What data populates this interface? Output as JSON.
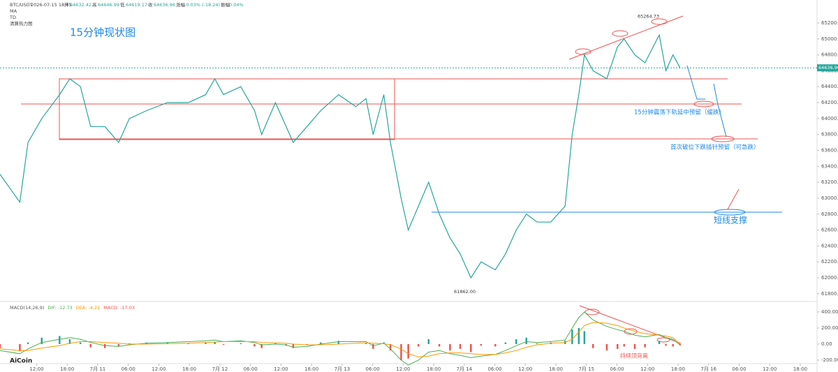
{
  "header": {
    "symbol": "BTC/USDT",
    "datetime": "2026-07-15 18:45",
    "open_label": "开",
    "open": "64632.42",
    "high_label": "高",
    "high": "64646.99",
    "low_label": "低",
    "low": "64619.17",
    "close_label": "收",
    "close": "64636.96",
    "change_label": "涨幅",
    "change": "-0.03% (-18.24)",
    "amp_label": "振幅",
    "amp": "0.04%",
    "indicators": [
      "MA",
      "TD",
      "清算热力图"
    ],
    "logo": "AiCoin"
  },
  "chart_data": [
    {
      "type": "line",
      "title": "15分钟现状图",
      "x": [
        -19.2,
        -15.3,
        -13.7,
        -11,
        -7.5,
        -5.5,
        -3.4,
        -1.4,
        1.4,
        4.1,
        6.2,
        9.6,
        13.7,
        17.8,
        21.2,
        23,
        24.7,
        28.1,
        30.8,
        32.2,
        34.9,
        37,
        38.4,
        41.1,
        43.8,
        47.3,
        50.7,
        52.7,
        54.1,
        56.2,
        57.5,
        59.6,
        61,
        63,
        65,
        67.1,
        69.2,
        71.2,
        73.3,
        75.3,
        78.1,
        80.1,
        82.2,
        84.2,
        86.3,
        89,
        91.8,
        93.2,
        94.5,
        95.6,
        97.3,
        100,
        102.1,
        103.4,
        105.5,
        107.5,
        110.3,
        111.6,
        113,
        114.4
      ],
      "series": [
        {
          "color": "#26a69a",
          "values": [
            63300,
            62950,
            63700,
            64000,
            64300,
            64500,
            64400,
            63900,
            63900,
            63700,
            64000,
            64100,
            64200,
            64200,
            64300,
            64500,
            64300,
            64400,
            64100,
            63800,
            64200,
            63900,
            63700,
            63900,
            64100,
            64300,
            64150,
            64250,
            63800,
            64300,
            63700,
            63000,
            62600,
            62900,
            63200,
            62800,
            62500,
            62300,
            62000,
            62200,
            62100,
            62300,
            62600,
            62800,
            62700,
            62700,
            62900,
            63800,
            64300,
            64800,
            64600,
            64500,
            64900,
            65000,
            64800,
            64700,
            65050,
            64600,
            64800,
            64636.96
          ]
        }
      ],
      "xlim": [
        -19.2,
        141.3
      ],
      "xticks": [
        {
          "value": -12,
          "label": "12:00"
        },
        {
          "value": -6,
          "label": "18:00"
        },
        {
          "value": 0,
          "label": "7月 11"
        },
        {
          "value": 6,
          "label": "06:00"
        },
        {
          "value": 12,
          "label": "12:00"
        },
        {
          "value": 18,
          "label": "18:00"
        },
        {
          "value": 24,
          "label": "7月 12"
        },
        {
          "value": 30,
          "label": "06:00"
        },
        {
          "value": 36,
          "label": "12:00"
        },
        {
          "value": 42,
          "label": "18:00"
        },
        {
          "value": 48,
          "label": "7月 13"
        },
        {
          "value": 54,
          "label": "06:00"
        },
        {
          "value": 60,
          "label": "12:00"
        },
        {
          "value": 66,
          "label": "18:00"
        },
        {
          "value": 72,
          "label": "7月 14"
        },
        {
          "value": 78,
          "label": "06:00"
        },
        {
          "value": 84,
          "label": "12:00"
        },
        {
          "value": 90,
          "label": "18:00"
        },
        {
          "value": 96,
          "label": "7月 15"
        },
        {
          "value": 102,
          "label": "06:00"
        },
        {
          "value": 108,
          "label": "12:00"
        },
        {
          "value": 114,
          "label": "18:00"
        },
        {
          "value": 120,
          "label": "7月 16"
        },
        {
          "value": 126,
          "label": "06:00"
        },
        {
          "value": 132,
          "label": "12:00"
        },
        {
          "value": 138,
          "label": "18:00"
        }
      ],
      "ylim": [
        61720,
        65445
      ],
      "yticks": [
        {
          "value": 61800,
          "label": "61800.00"
        },
        {
          "value": 62000,
          "label": "62000.00"
        },
        {
          "value": 62200,
          "label": "62200.00"
        },
        {
          "value": 62400,
          "label": "62400.00"
        },
        {
          "value": 62600,
          "label": "62600.00"
        },
        {
          "value": 62800,
          "label": "62800.00"
        },
        {
          "value": 63000,
          "label": "63000.00"
        },
        {
          "value": 63200,
          "label": "63200.00"
        },
        {
          "value": 63400,
          "label": "63400.00"
        },
        {
          "value": 63600,
          "label": "63600.00"
        },
        {
          "value": 63800,
          "label": "63800.00"
        },
        {
          "value": 64000,
          "label": "64000.00"
        },
        {
          "value": 64200,
          "label": "64200.00"
        },
        {
          "value": 64400,
          "label": "64400.00"
        },
        {
          "value": 64600,
          "label": "64600.00"
        },
        {
          "value": 64800,
          "label": "64800.00"
        },
        {
          "value": 65000,
          "label": "65000.00"
        },
        {
          "value": 65200,
          "label": "65200.00"
        }
      ],
      "last_price": 64636.96,
      "high_marker": 65264.73,
      "low_marker": {
        "value": 61862,
        "label": "61862.00"
      },
      "annotations": [
        "15分钟震荡下轨延中预留（缓跌）",
        "首次破位下跌插针预留（可急跌）",
        "短线支撑"
      ]
    },
    {
      "type": "macd",
      "legend_labels": [
        "MACD(14,26,9)",
        "DIF: -12.73",
        "DEA: -4.22",
        "MACD: -17.03"
      ],
      "series": [
        {
          "kind": "bar",
          "color": "#ef5350",
          "color_positive": "#26a69a",
          "values": [
            -50,
            -90,
            20,
            80,
            100,
            60,
            20,
            -40,
            -50,
            -30,
            10,
            20,
            20,
            10,
            20,
            30,
            -10,
            10,
            -30,
            -50,
            10,
            -20,
            -50,
            -10,
            20,
            40,
            0,
            10,
            -60,
            20,
            -80,
            -200,
            -180,
            -30,
            60,
            -30,
            -80,
            -60,
            -100,
            -20,
            -30,
            20,
            60,
            80,
            10,
            20,
            40,
            180,
            200,
            160,
            -50,
            -80,
            -60,
            -30,
            -60,
            -40,
            40,
            -20,
            -30,
            -17.03
          ]
        },
        {
          "kind": "line",
          "color": "#4caf50",
          "values": [
            -80,
            -120,
            -60,
            20,
            60,
            80,
            60,
            20,
            -20,
            -30,
            -10,
            10,
            20,
            30,
            40,
            50,
            30,
            40,
            20,
            -10,
            0,
            -10,
            -40,
            -30,
            0,
            30,
            30,
            30,
            -20,
            10,
            -60,
            -200,
            -260,
            -200,
            -100,
            -80,
            -120,
            -140,
            -170,
            -150,
            -130,
            -80,
            -20,
            30,
            20,
            30,
            50,
            200,
            330,
            400,
            300,
            220,
            180,
            160,
            110,
            90,
            120,
            80,
            60,
            -12.73
          ]
        },
        {
          "kind": "line",
          "color": "#ff9800",
          "values": [
            -60,
            -80,
            -80,
            -50,
            -20,
            10,
            30,
            30,
            20,
            10,
            0,
            0,
            5,
            10,
            20,
            25,
            30,
            30,
            30,
            20,
            15,
            10,
            0,
            -10,
            -10,
            0,
            10,
            15,
            10,
            5,
            -10,
            -60,
            -120,
            -160,
            -150,
            -120,
            -110,
            -110,
            -120,
            -130,
            -130,
            -110,
            -80,
            -40,
            -10,
            10,
            20,
            60,
            150,
            230,
            270,
            260,
            230,
            200,
            160,
            130,
            110,
            100,
            80,
            -4.22
          ]
        }
      ],
      "ylim": [
        -235,
        504
      ],
      "yticks": [
        {
          "value": 400,
          "label": "400.00"
        },
        {
          "value": 200,
          "label": "200.00"
        },
        {
          "value": 0,
          "label": "0.00"
        },
        {
          "value": -200,
          "label": "-200.00"
        }
      ],
      "annotations": [
        "持续顶背离"
      ]
    }
  ]
}
